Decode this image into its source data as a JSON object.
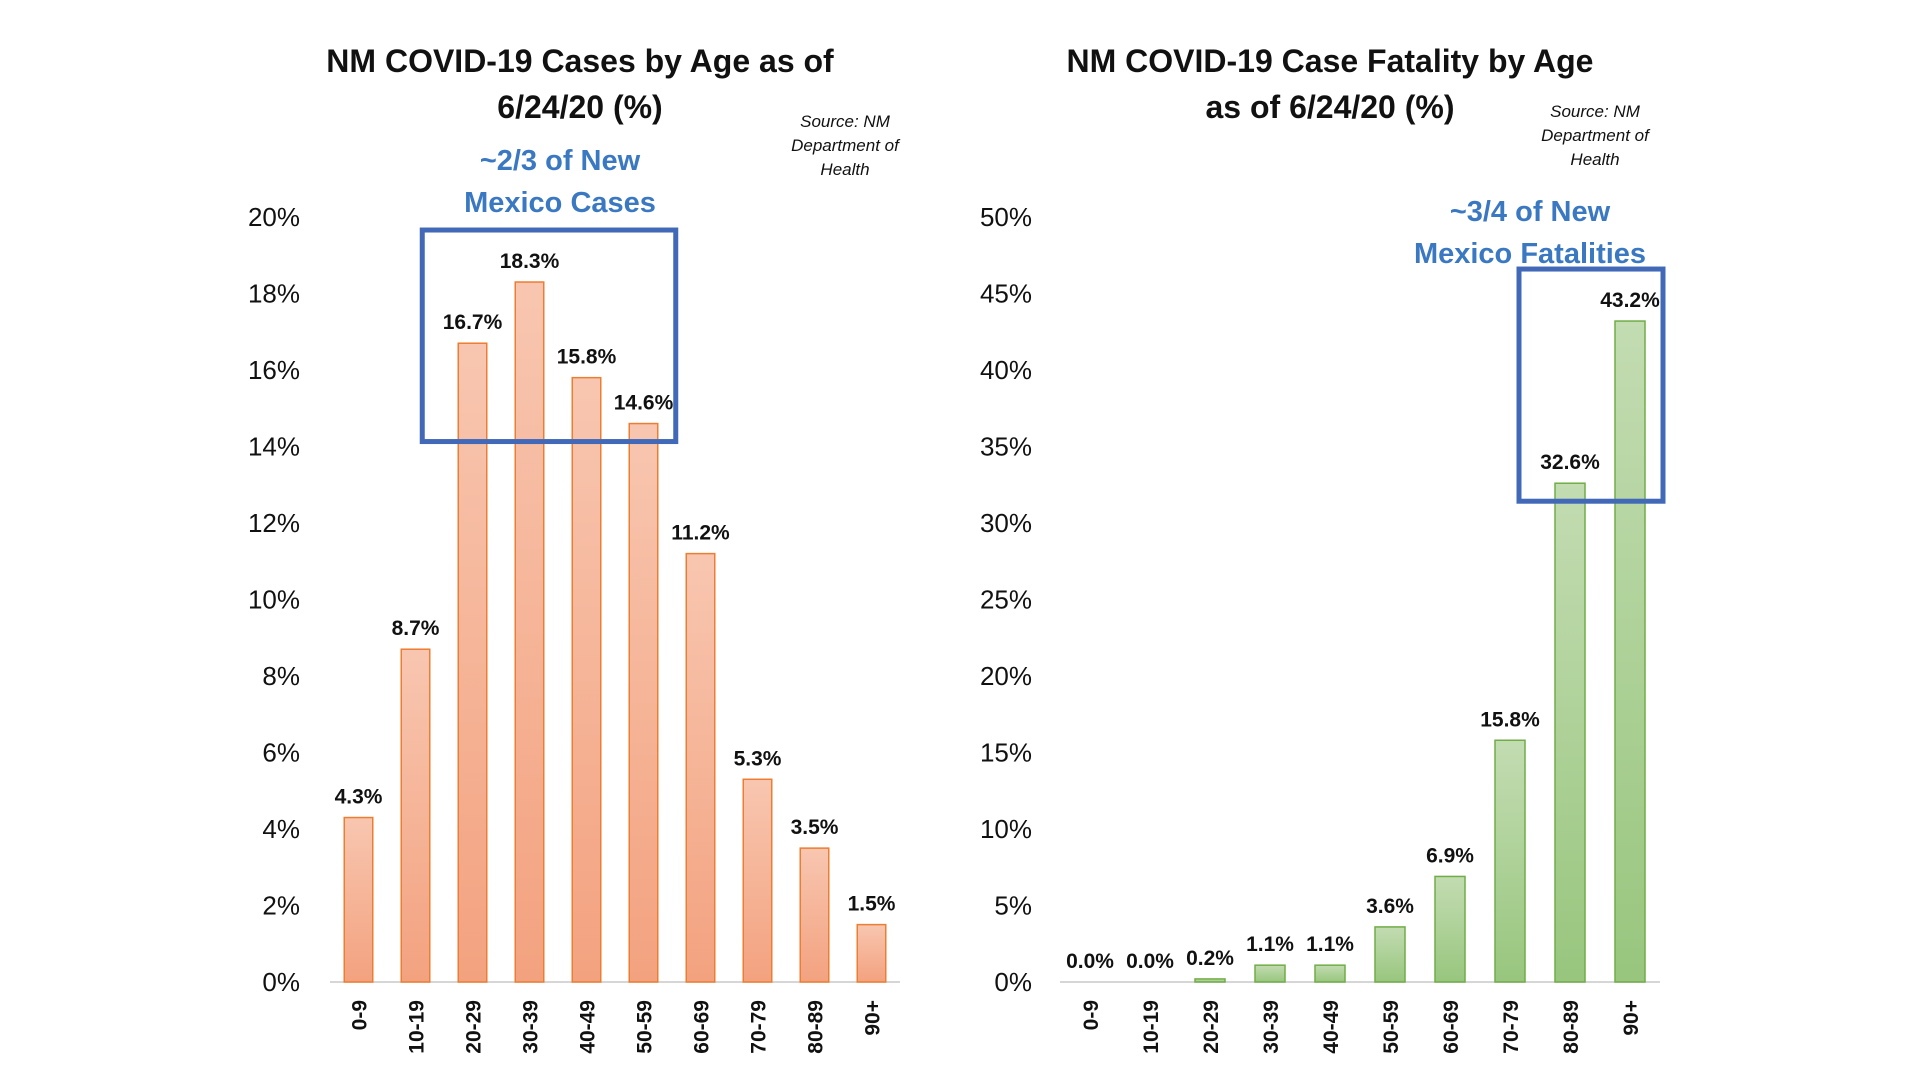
{
  "chart_data": [
    {
      "type": "bar",
      "title_line1": "NM COVID-19 Cases by Age as of",
      "title_line2": "6/24/20 (%)",
      "source_line1": "Source: NM",
      "source_line2": "Department of",
      "source_line3": "Health",
      "callout_line1": "~2/3 of New",
      "callout_line2": "Mexico Cases",
      "categories": [
        "0-9",
        "10-19",
        "20-29",
        "30-39",
        "40-49",
        "50-59",
        "60-69",
        "70-79",
        "80-89",
        "90+"
      ],
      "values": [
        4.3,
        8.7,
        16.7,
        18.3,
        15.8,
        14.6,
        11.2,
        5.3,
        3.5,
        1.5
      ],
      "value_labels": [
        "4.3%",
        "8.7%",
        "16.7%",
        "18.3%",
        "15.8%",
        "14.6%",
        "11.2%",
        "5.3%",
        "3.5%",
        "1.5%"
      ],
      "ylim": [
        0,
        20
      ],
      "yticks": [
        0,
        2,
        4,
        6,
        8,
        10,
        12,
        14,
        16,
        18,
        20
      ],
      "ytick_labels": [
        "0%",
        "2%",
        "4%",
        "6%",
        "8%",
        "10%",
        "12%",
        "14%",
        "16%",
        "18%",
        "20%"
      ],
      "highlight_categories": [
        "20-29",
        "30-39",
        "40-49",
        "50-59"
      ],
      "bar_color_top": "#f8c6b0",
      "bar_color_bottom": "#f3a27f",
      "bar_stroke": "#ed7d31",
      "highlight_box_color": "#4169b8",
      "grid": false,
      "legend": "none"
    },
    {
      "type": "bar",
      "title_line1": "NM COVID-19 Case Fatality by Age",
      "title_line2": "as of 6/24/20 (%)",
      "source_line1": "Source: NM",
      "source_line2": "Department of",
      "source_line3": "Health",
      "callout_line1": "~3/4 of New",
      "callout_line2": "Mexico Fatalities",
      "categories": [
        "0-9",
        "10-19",
        "20-29",
        "30-39",
        "40-49",
        "50-59",
        "60-69",
        "70-79",
        "80-89",
        "90+"
      ],
      "values": [
        0.0,
        0.0,
        0.2,
        1.1,
        1.1,
        3.6,
        6.9,
        15.8,
        32.6,
        43.2
      ],
      "value_labels": [
        "0.0%",
        "0.0%",
        "0.2%",
        "1.1%",
        "1.1%",
        "3.6%",
        "6.9%",
        "15.8%",
        "32.6%",
        "43.2%"
      ],
      "ylim": [
        0,
        50
      ],
      "yticks": [
        0,
        5,
        10,
        15,
        20,
        25,
        30,
        35,
        40,
        45,
        50
      ],
      "ytick_labels": [
        "0%",
        "5%",
        "10%",
        "15%",
        "20%",
        "25%",
        "30%",
        "35%",
        "40%",
        "45%",
        "50%"
      ],
      "highlight_categories": [
        "80-89",
        "90+"
      ],
      "bar_color_top": "#c3dcb2",
      "bar_color_bottom": "#98c67e",
      "bar_stroke": "#70ad47",
      "highlight_box_color": "#4169b8",
      "grid": false,
      "legend": "none"
    }
  ]
}
